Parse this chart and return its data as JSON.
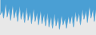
{
  "values": [
    18,
    22,
    15,
    28,
    16,
    24,
    13,
    27,
    15,
    23,
    12,
    26,
    14,
    22,
    11,
    25,
    13,
    21,
    10,
    24,
    12,
    20,
    9,
    22,
    10,
    19,
    8,
    20,
    7,
    17,
    6,
    19,
    8,
    16,
    5,
    18,
    9,
    15,
    6,
    17,
    10,
    18,
    7,
    21,
    12,
    20,
    9,
    23,
    14,
    22,
    11,
    26,
    15,
    23,
    12,
    27
  ],
  "line_color": "#4a9fd4",
  "fill_color": "#4a9fd4",
  "background_color": "#e8e8e8",
  "ylim_min": 0,
  "ylim_max": 32
}
